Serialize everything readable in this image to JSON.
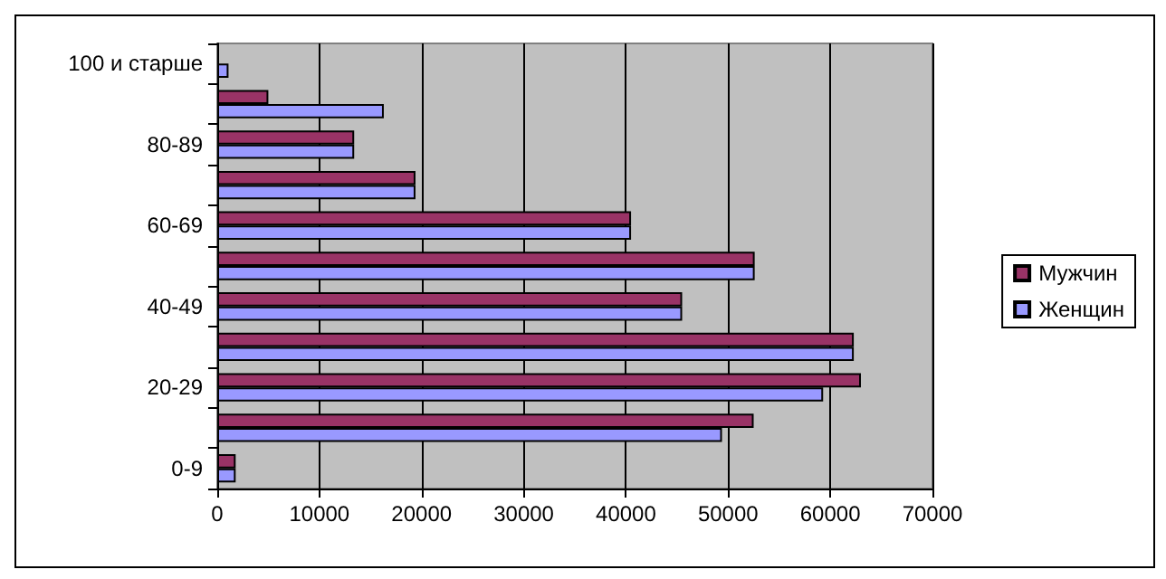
{
  "chart_data": {
    "type": "bar",
    "orientation": "horizontal",
    "categories": [
      "100 и старше",
      null,
      "80-89",
      null,
      "60-69",
      null,
      "40-49",
      null,
      "20-29",
      null,
      "0-9"
    ],
    "series": [
      {
        "name": "Мужчин",
        "color": "#993366",
        "values": [
          null,
          5000,
          13400,
          19400,
          40500,
          52600,
          45500,
          62300,
          63000,
          52500,
          1800
        ]
      },
      {
        "name": "Женщин",
        "color": "#9999ff",
        "values": [
          1100,
          16300,
          13400,
          19400,
          40500,
          52600,
          45500,
          62300,
          59300,
          49400,
          1800
        ]
      }
    ],
    "xlim": [
      0,
      70000
    ],
    "xticks": [
      0,
      10000,
      20000,
      30000,
      40000,
      50000,
      60000,
      70000
    ],
    "grid": "x",
    "legend": "right"
  }
}
